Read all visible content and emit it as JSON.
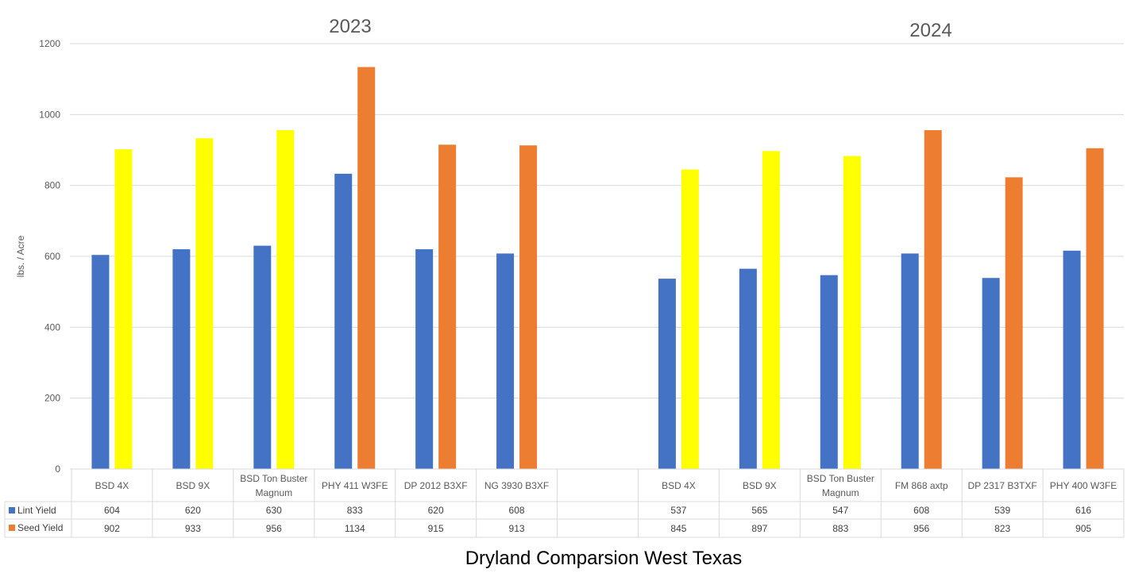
{
  "chart_data": {
    "type": "bar",
    "title": "Dryland Comparsion West Texas",
    "ylabel": "lbs. / Acre",
    "ylim": [
      0,
      1200
    ],
    "yticks": [
      0,
      200,
      400,
      600,
      800,
      1000,
      1200
    ],
    "grid": true,
    "legend": "data-table",
    "group_labels": [
      "2023",
      "2024"
    ],
    "categories": [
      "BSD 4X",
      "BSD 9X",
      "BSD Ton Buster Magnum",
      "PHY 411 W3FE",
      "DP 2012 B3XF",
      "NG 3930 B3XF",
      "",
      "BSD 4X",
      "BSD 9X",
      "BSD Ton Buster Magnum",
      "FM 868 axtp",
      "DP 2317 B3TXF",
      "PHY 400 W3FE"
    ],
    "category_lines": [
      [
        "BSD 4X"
      ],
      [
        "BSD 9X"
      ],
      [
        "BSD Ton Buster",
        "Magnum"
      ],
      [
        "PHY 411 W3FE"
      ],
      [
        "DP 2012 B3XF"
      ],
      [
        "NG 3930 B3XF"
      ],
      [],
      [
        "BSD 4X"
      ],
      [
        "BSD 9X"
      ],
      [
        "BSD Ton Buster",
        "Magnum"
      ],
      [
        "FM 868 axtp"
      ],
      [
        "DP 2317 B3TXF"
      ],
      [
        "PHY 400 W3FE"
      ]
    ],
    "series": [
      {
        "name": "Lint Yield",
        "color": "#4472C4",
        "values": [
          604,
          620,
          630,
          833,
          620,
          608,
          null,
          537,
          565,
          547,
          608,
          539,
          616
        ]
      },
      {
        "name": "Seed Yield",
        "color": "#ED7D31",
        "values": [
          902,
          933,
          956,
          1134,
          915,
          913,
          null,
          845,
          897,
          883,
          956,
          823,
          905
        ],
        "point_colors": [
          "#FFFF00",
          "#FFFF00",
          "#FFFF00",
          "#ED7D31",
          "#ED7D31",
          "#ED7D31",
          null,
          "#FFFF00",
          "#FFFF00",
          "#FFFF00",
          "#ED7D31",
          "#ED7D31",
          "#ED7D31"
        ]
      }
    ]
  }
}
